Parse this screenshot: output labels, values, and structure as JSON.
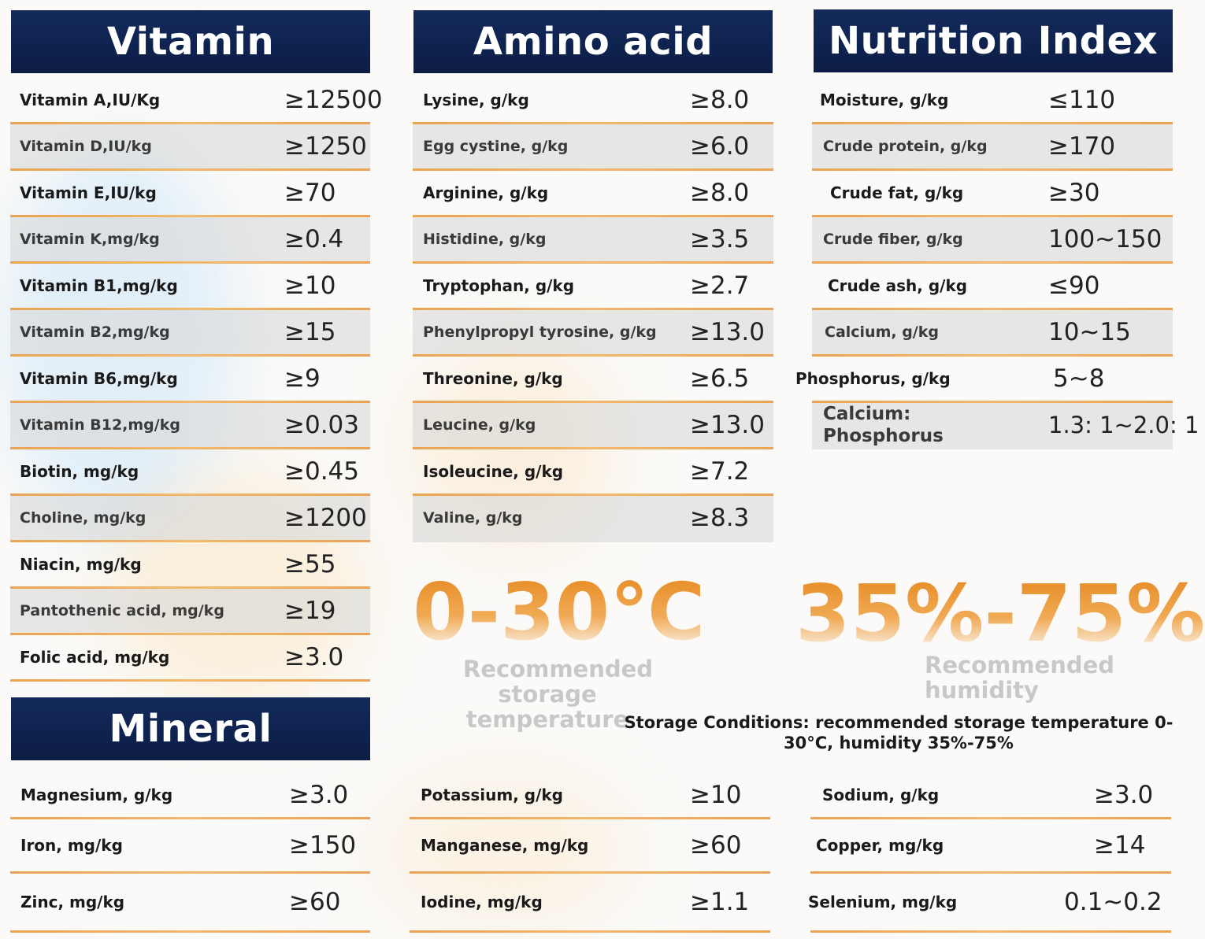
{
  "vitamin": {
    "title": "Vitamin",
    "rows": [
      {
        "label": "Vitamin A,IU/Kg",
        "value": "≥12500"
      },
      {
        "label": "Vitamin D,IU/kg",
        "value": "≥1250"
      },
      {
        "label": "Vitamin E,IU/kg",
        "value": "≥70"
      },
      {
        "label": "Vitamin K,mg/kg",
        "value": "≥0.4"
      },
      {
        "label": "Vitamin B1,mg/kg",
        "value": "≥10"
      },
      {
        "label": "Vitamin B2,mg/kg",
        "value": "≥15"
      },
      {
        "label": "Vitamin B6,mg/kg",
        "value": "≥9"
      },
      {
        "label": "Vitamin B12,mg/kg",
        "value": "≥0.03"
      },
      {
        "label": "Biotin, mg/kg",
        "value": "≥0.45"
      },
      {
        "label": "Choline, mg/kg",
        "value": "≥1200"
      },
      {
        "label": "Niacin, mg/kg",
        "value": "≥55"
      },
      {
        "label": "Pantothenic acid, mg/kg",
        "value": "≥19"
      },
      {
        "label": "Folic acid, mg/kg",
        "value": "≥3.0"
      }
    ]
  },
  "amino": {
    "title": "Amino acid",
    "rows": [
      {
        "label": "Lysine, g/kg",
        "value": "≥8.0"
      },
      {
        "label": "Egg cystine, g/kg",
        "value": "≥6.0"
      },
      {
        "label": "Arginine, g/kg",
        "value": "≥8.0"
      },
      {
        "label": "Histidine, g/kg",
        "value": "≥3.5"
      },
      {
        "label": "Tryptophan, g/kg",
        "value": "≥2.7"
      },
      {
        "label": "Phenylpropyl tyrosine, g/kg",
        "value": "≥13.0"
      },
      {
        "label": "Threonine, g/kg",
        "value": "≥6.5"
      },
      {
        "label": "Leucine, g/kg",
        "value": "≥13.0"
      },
      {
        "label": "Isoleucine, g/kg",
        "value": "≥7.2"
      },
      {
        "label": "Valine, g/kg",
        "value": "≥8.3"
      }
    ]
  },
  "nutrition": {
    "title": "Nutrition Index",
    "rows": [
      {
        "label": "Moisture, g/kg",
        "value": "≤110"
      },
      {
        "label": "Crude protein, g/kg",
        "value": "≥170"
      },
      {
        "label": "Crude fat, g/kg",
        "value": "≥30"
      },
      {
        "label": "Crude fiber, g/kg",
        "value": "100~150"
      },
      {
        "label": "Crude ash, g/kg",
        "value": "≤90"
      },
      {
        "label": "Calcium, g/kg",
        "value": "10~15"
      },
      {
        "label": "Phosphorus, g/kg",
        "value": "5~8"
      },
      {
        "label": "Calcium: Phosphorus",
        "value": "1.3: 1~2.0: 1"
      }
    ]
  },
  "storage": {
    "temperature": "0-30℃",
    "temperature_caption": "Recommended storage temperature",
    "humidity": "35%-75%",
    "humidity_caption": "Recommended humidity",
    "note": "Storage Conditions: recommended storage temperature 0-30°C, humidity 35%-75%"
  },
  "mineral": {
    "title": "Mineral",
    "col1": [
      {
        "label": "Magnesium, g/kg",
        "value": "≥3.0"
      },
      {
        "label": "Iron, mg/kg",
        "value": "≥150"
      },
      {
        "label": "Zinc, mg/kg",
        "value": "≥60"
      }
    ],
    "col2": [
      {
        "label": "Potassium, g/kg",
        "value": "≥10"
      },
      {
        "label": "Manganese, mg/kg",
        "value": "≥60"
      },
      {
        "label": "Iodine, mg/kg",
        "value": "≥1.1"
      }
    ],
    "col3": [
      {
        "label": "Sodium, g/kg",
        "value": "≥3.0"
      },
      {
        "label": "Copper, mg/kg",
        "value": "≥14"
      },
      {
        "label": "Selenium, mg/kg",
        "value": "0.1~0.2"
      }
    ]
  }
}
